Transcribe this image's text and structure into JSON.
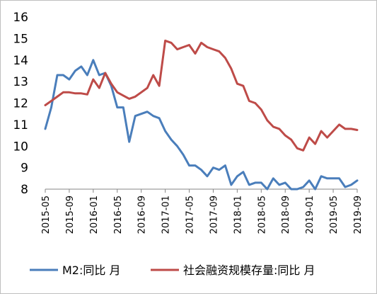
{
  "chart_data": {
    "type": "line",
    "title": "",
    "xlabel": "",
    "ylabel": "",
    "ylim": [
      8,
      16
    ],
    "yticks": [
      8,
      9,
      10,
      11,
      12,
      13,
      14,
      15,
      16
    ],
    "grid": false,
    "legend_position": "bottom",
    "x_tick_labels": [
      "2015-05",
      "2015-09",
      "2016-01",
      "2016-05",
      "2016-09",
      "2017-01",
      "2017-05",
      "2017-09",
      "2018-01",
      "2018-05",
      "2018-09",
      "2019-01",
      "2019-05",
      "2019-09"
    ],
    "x": [
      "2015-05",
      "2015-06",
      "2015-07",
      "2015-08",
      "2015-09",
      "2015-10",
      "2015-11",
      "2015-12",
      "2016-01",
      "2016-02",
      "2016-03",
      "2016-04",
      "2016-05",
      "2016-06",
      "2016-07",
      "2016-08",
      "2016-09",
      "2016-10",
      "2016-11",
      "2016-12",
      "2017-01",
      "2017-02",
      "2017-03",
      "2017-04",
      "2017-05",
      "2017-06",
      "2017-07",
      "2017-08",
      "2017-09",
      "2017-10",
      "2017-11",
      "2017-12",
      "2018-01",
      "2018-02",
      "2018-03",
      "2018-04",
      "2018-05",
      "2018-06",
      "2018-07",
      "2018-08",
      "2018-09",
      "2018-10",
      "2018-11",
      "2018-12",
      "2019-01",
      "2019-02",
      "2019-03",
      "2019-04",
      "2019-05",
      "2019-06",
      "2019-07",
      "2019-08",
      "2019-09"
    ],
    "series": [
      {
        "name": "M2:同比 月",
        "color": "#4a7ebb",
        "values": [
          10.8,
          11.8,
          13.3,
          13.3,
          13.1,
          13.5,
          13.7,
          13.3,
          14.0,
          13.3,
          13.4,
          12.8,
          11.8,
          11.8,
          10.2,
          11.4,
          11.5,
          11.6,
          11.4,
          11.3,
          10.7,
          10.3,
          10.0,
          9.6,
          9.1,
          9.1,
          8.9,
          8.6,
          9.0,
          8.9,
          9.1,
          8.2,
          8.6,
          8.8,
          8.2,
          8.3,
          8.3,
          8.0,
          8.5,
          8.2,
          8.3,
          8.0,
          8.0,
          8.1,
          8.4,
          8.0,
          8.6,
          8.5,
          8.5,
          8.5,
          8.1,
          8.2,
          8.4
        ]
      },
      {
        "name": "社会融资规模存量:同比 月",
        "color": "#be4b48",
        "values": [
          11.9,
          12.1,
          12.3,
          12.5,
          12.5,
          12.45,
          12.45,
          12.4,
          13.1,
          12.7,
          13.4,
          12.9,
          12.5,
          12.35,
          12.2,
          12.3,
          12.5,
          12.7,
          13.3,
          12.8,
          14.9,
          14.8,
          14.5,
          14.6,
          14.7,
          14.3,
          14.8,
          14.6,
          14.5,
          14.4,
          14.1,
          13.6,
          12.9,
          12.8,
          12.1,
          12.0,
          11.7,
          11.2,
          10.9,
          10.8,
          10.5,
          10.3,
          9.9,
          9.8,
          10.4,
          10.1,
          10.7,
          10.4,
          10.7,
          11.0,
          10.8,
          10.8,
          10.75
        ]
      }
    ]
  }
}
